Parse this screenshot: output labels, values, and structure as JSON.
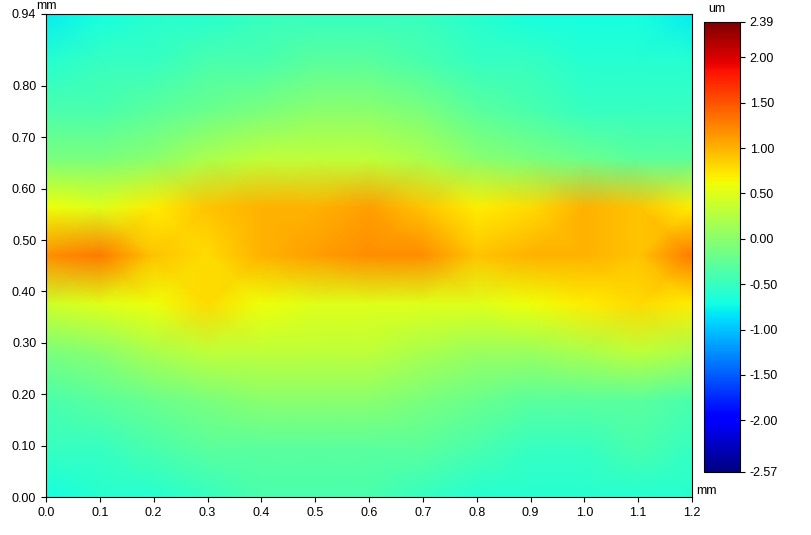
{
  "chart_data": {
    "type": "heatmap",
    "xlabel": "mm",
    "ylabel": "mm",
    "x": [
      0.0,
      0.1,
      0.2,
      0.3,
      0.4,
      0.5,
      0.6,
      0.7,
      0.8,
      0.9,
      1.0,
      1.1,
      1.2
    ],
    "y": [
      0.0,
      0.094,
      0.188,
      0.282,
      0.376,
      0.47,
      0.564,
      0.658,
      0.752,
      0.846,
      0.94
    ],
    "cells": [
      [
        -0.7,
        -0.6,
        -0.6,
        -0.5,
        -0.4,
        -0.4,
        -0.4,
        -0.5,
        -0.6,
        -0.6,
        -0.6,
        -0.6,
        -0.6
      ],
      [
        -0.5,
        -0.5,
        -0.4,
        -0.3,
        -0.3,
        -0.3,
        -0.3,
        -0.3,
        -0.4,
        -0.5,
        -0.5,
        -0.4,
        -0.5
      ],
      [
        -0.4,
        -0.3,
        -0.2,
        -0.1,
        0.0,
        0.0,
        0.0,
        -0.1,
        -0.2,
        -0.3,
        -0.3,
        -0.3,
        -0.4
      ],
      [
        -0.1,
        0.0,
        0.2,
        0.3,
        0.3,
        0.3,
        0.3,
        0.2,
        0.1,
        0.1,
        0.2,
        0.3,
        0.2
      ],
      [
        0.4,
        0.5,
        0.6,
        0.8,
        0.6,
        0.5,
        0.5,
        0.5,
        0.5,
        0.6,
        0.7,
        0.8,
        0.7
      ],
      [
        1.2,
        1.3,
        0.9,
        0.8,
        1.0,
        1.1,
        1.2,
        1.2,
        0.9,
        1.0,
        1.0,
        0.9,
        1.3
      ],
      [
        0.6,
        0.5,
        0.7,
        0.9,
        1.0,
        1.0,
        1.1,
        0.9,
        0.7,
        0.8,
        1.0,
        0.9,
        0.7
      ],
      [
        -0.1,
        -0.1,
        0.0,
        0.2,
        0.3,
        0.3,
        0.3,
        0.2,
        0.0,
        -0.1,
        -0.2,
        -0.3,
        -0.3
      ],
      [
        -0.4,
        -0.4,
        -0.3,
        -0.2,
        -0.1,
        0.0,
        0.0,
        -0.1,
        -0.3,
        -0.4,
        -0.5,
        -0.5,
        -0.5
      ],
      [
        -0.6,
        -0.5,
        -0.5,
        -0.4,
        -0.4,
        -0.3,
        -0.3,
        -0.4,
        -0.5,
        -0.5,
        -0.6,
        -0.6,
        -0.6
      ],
      [
        -0.8,
        -0.7,
        -0.6,
        -0.6,
        -0.5,
        -0.5,
        -0.5,
        -0.5,
        -0.6,
        -0.7,
        -0.7,
        -0.7,
        -0.8
      ]
    ],
    "xlim": [
      0,
      1.2
    ],
    "ylim": [
      0,
      0.94
    ],
    "xticks": [
      {
        "value": 0,
        "label": "0.0"
      },
      0.1,
      0.2,
      0.3,
      0.4,
      0.5,
      0.6,
      0.7,
      0.8,
      0.9,
      {
        "value": 1,
        "label": "1.0"
      },
      1.1,
      1.2
    ],
    "yticks": [
      {
        "value": 0,
        "label": "0.00"
      },
      {
        "value": 0.1,
        "label": "0.10"
      },
      {
        "value": 0.2,
        "label": "0.20"
      },
      {
        "value": 0.3,
        "label": "0.30"
      },
      {
        "value": 0.4,
        "label": "0.40"
      },
      {
        "value": 0.5,
        "label": "0.50"
      },
      {
        "value": 0.6,
        "label": "0.60"
      },
      {
        "value": 0.7,
        "label": "0.70"
      },
      {
        "value": 0.8,
        "label": "0.80"
      },
      0.94
    ],
    "colorbar_label": "um",
    "colorbar_range": [
      -2.57,
      2.39
    ],
    "colorbar_ticks": [
      2.39,
      {
        "value": 2,
        "label": "2.00"
      },
      {
        "value": 1.5,
        "label": "1.50"
      },
      {
        "value": 1,
        "label": "1.00"
      },
      {
        "value": 0.5,
        "label": "0.50"
      },
      {
        "value": 0,
        "label": "0.00"
      },
      {
        "value": -0.5,
        "label": "-0.50"
      },
      {
        "value": -1,
        "label": "-1.00"
      },
      {
        "value": -1.5,
        "label": "-1.50"
      },
      {
        "value": -2,
        "label": "-2.00"
      },
      -2.57
    ]
  }
}
